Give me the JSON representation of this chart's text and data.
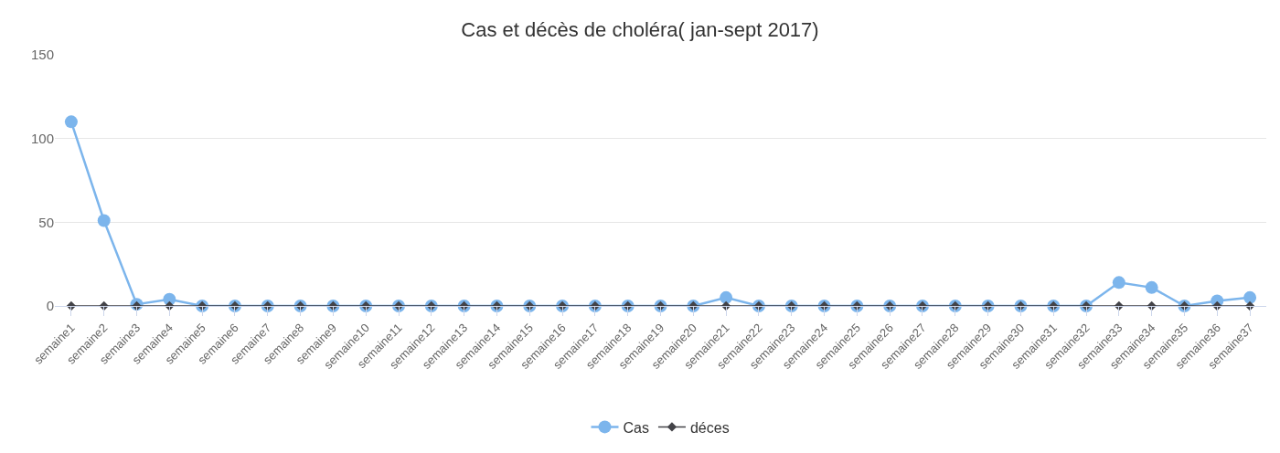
{
  "chart_data": {
    "type": "line",
    "title": "Cas et décès de choléra( jan-sept 2017)",
    "categories": [
      "semaine1",
      "semaine2",
      "semaine3",
      "semaine4",
      "semaine5",
      "semaine6",
      "semaine7",
      "semaine8",
      "semaine9",
      "semaine10",
      "semaine11",
      "semaine12",
      "semaine13",
      "semaine14",
      "semaine15",
      "semaine16",
      "semaine17",
      "semaine18",
      "semaine19",
      "semaine20",
      "semaine21",
      "semaine22",
      "semaine23",
      "semaine24",
      "semaine25",
      "semaine26",
      "semaine27",
      "semaine28",
      "semaine29",
      "semaine30",
      "semaine31",
      "semaine32",
      "semaine33",
      "semaine34",
      "semaine35",
      "semaine36",
      "semaine37"
    ],
    "series": [
      {
        "name": "Cas",
        "color": "#7cb5ec",
        "marker": "circle",
        "values": [
          110,
          51,
          1,
          4,
          0,
          0,
          0,
          0,
          0,
          0,
          0,
          0,
          0,
          0,
          0,
          0,
          0,
          0,
          0,
          0,
          5,
          0,
          0,
          0,
          0,
          0,
          0,
          0,
          0,
          0,
          0,
          0,
          14,
          11,
          0,
          3,
          5
        ]
      },
      {
        "name": "déces",
        "color": "#434348",
        "marker": "diamond",
        "values": [
          0,
          0,
          0,
          0,
          0,
          0,
          0,
          0,
          0,
          0,
          0,
          0,
          0,
          0,
          0,
          0,
          0,
          0,
          0,
          0,
          0,
          0,
          0,
          0,
          0,
          0,
          0,
          0,
          0,
          0,
          0,
          0,
          0,
          0,
          0,
          0,
          0
        ]
      }
    ],
    "ylim": [
      0,
      150
    ],
    "yticks": [
      0,
      50,
      100,
      150
    ],
    "grid": "y",
    "legend": "bottom"
  }
}
